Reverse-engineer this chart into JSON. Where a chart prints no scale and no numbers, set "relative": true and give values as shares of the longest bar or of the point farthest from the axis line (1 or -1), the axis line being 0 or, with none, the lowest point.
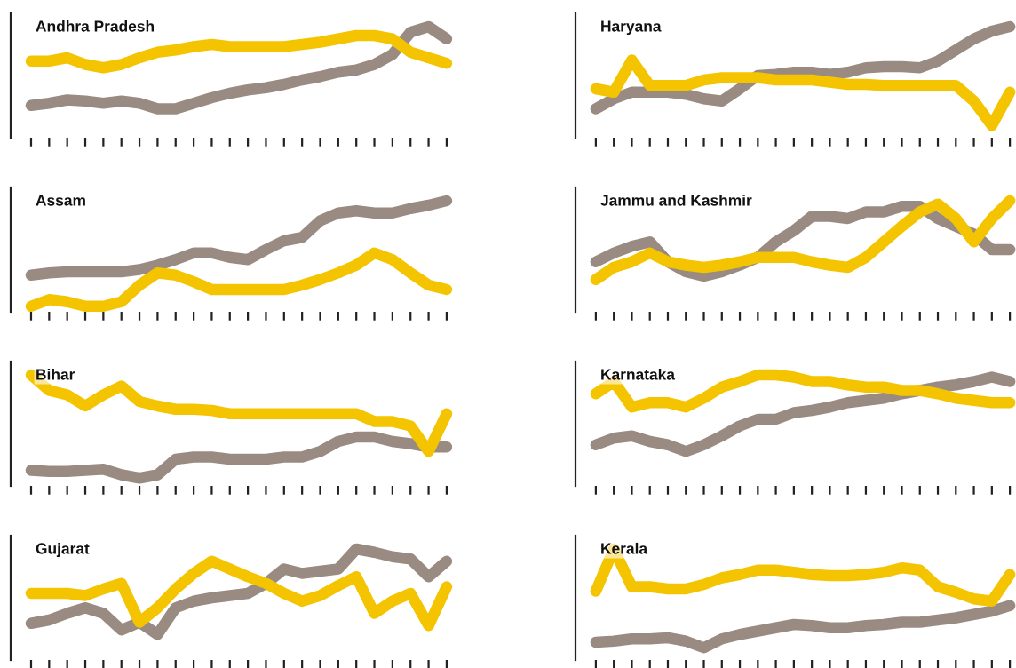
{
  "chart_data": [
    {
      "type": "line",
      "title": "Andhra Pradesh",
      "relative": true,
      "categories": [
        null,
        null,
        null,
        null,
        null,
        null,
        null,
        null,
        null,
        null,
        null,
        null,
        null,
        null,
        null,
        null,
        null,
        null,
        null,
        null,
        null,
        null,
        null,
        null
      ],
      "series": [
        {
          "color": "#9a8b82",
          "values": [
            0.29,
            0.31,
            0.34,
            0.33,
            0.31,
            0.33,
            0.31,
            0.26,
            0.26,
            0.31,
            0.36,
            0.4,
            0.43,
            0.45,
            0.48,
            0.52,
            0.55,
            0.59,
            0.61,
            0.66,
            0.75,
            0.95,
            1.0,
            0.89
          ]
        },
        {
          "color": "#f5c400",
          "values": [
            0.69,
            0.69,
            0.72,
            0.66,
            0.63,
            0.66,
            0.72,
            0.77,
            0.79,
            0.82,
            0.84,
            0.82,
            0.82,
            0.82,
            0.82,
            0.84,
            0.86,
            0.89,
            0.92,
            0.92,
            0.89,
            0.77,
            0.72,
            0.67
          ]
        }
      ]
    },
    {
      "type": "line",
      "title": "Haryana",
      "relative": true,
      "categories": [
        null,
        null,
        null,
        null,
        null,
        null,
        null,
        null,
        null,
        null,
        null,
        null,
        null,
        null,
        null,
        null,
        null,
        null,
        null,
        null,
        null,
        null,
        null,
        null
      ],
      "series": [
        {
          "color": "#9a8b82",
          "values": [
            0.26,
            0.35,
            0.41,
            0.41,
            0.41,
            0.39,
            0.35,
            0.33,
            0.44,
            0.56,
            0.57,
            0.59,
            0.59,
            0.57,
            0.59,
            0.63,
            0.64,
            0.64,
            0.63,
            0.69,
            0.79,
            0.89,
            0.96,
            1.0
          ]
        },
        {
          "color": "#f5c400",
          "values": [
            0.44,
            0.41,
            0.7,
            0.47,
            0.47,
            0.47,
            0.52,
            0.54,
            0.54,
            0.54,
            0.52,
            0.52,
            0.52,
            0.5,
            0.48,
            0.48,
            0.47,
            0.47,
            0.47,
            0.47,
            0.47,
            0.33,
            0.11,
            0.41
          ]
        }
      ]
    },
    {
      "type": "line",
      "title": "Assam",
      "relative": true,
      "categories": [
        null,
        null,
        null,
        null,
        null,
        null,
        null,
        null,
        null,
        null,
        null,
        null,
        null,
        null,
        null,
        null,
        null,
        null,
        null,
        null,
        null,
        null,
        null,
        null
      ],
      "series": [
        {
          "color": "#9a8b82",
          "values": [
            0.33,
            0.35,
            0.36,
            0.36,
            0.36,
            0.36,
            0.38,
            0.42,
            0.47,
            0.53,
            0.53,
            0.49,
            0.47,
            0.56,
            0.64,
            0.67,
            0.82,
            0.89,
            0.91,
            0.89,
            0.89,
            0.93,
            0.96,
            1.0
          ]
        },
        {
          "color": "#f5c400",
          "values": [
            0.05,
            0.11,
            0.09,
            0.05,
            0.05,
            0.09,
            0.24,
            0.35,
            0.33,
            0.27,
            0.2,
            0.2,
            0.2,
            0.2,
            0.2,
            0.24,
            0.29,
            0.35,
            0.42,
            0.53,
            0.47,
            0.35,
            0.24,
            0.2
          ]
        }
      ]
    },
    {
      "type": "line",
      "title": "Jammu and Kashmir",
      "relative": true,
      "categories": [
        null,
        null,
        null,
        null,
        null,
        null,
        null,
        null,
        null,
        null,
        null,
        null,
        null,
        null,
        null,
        null,
        null,
        null,
        null,
        null,
        null,
        null,
        null,
        null
      ],
      "series": [
        {
          "color": "#9a8b82",
          "values": [
            0.45,
            0.53,
            0.59,
            0.63,
            0.45,
            0.36,
            0.32,
            0.36,
            0.42,
            0.49,
            0.63,
            0.73,
            0.86,
            0.86,
            0.84,
            0.9,
            0.9,
            0.95,
            0.95,
            0.84,
            0.77,
            0.7,
            0.56,
            0.56
          ]
        },
        {
          "color": "#f5c400",
          "values": [
            0.29,
            0.4,
            0.45,
            0.53,
            0.45,
            0.42,
            0.4,
            0.42,
            0.45,
            0.49,
            0.49,
            0.49,
            0.45,
            0.42,
            0.4,
            0.49,
            0.63,
            0.77,
            0.9,
            0.97,
            0.84,
            0.63,
            0.84,
            1.0
          ]
        }
      ]
    },
    {
      "type": "line",
      "title": "Bihar",
      "relative": true,
      "categories": [
        null,
        null,
        null,
        null,
        null,
        null,
        null,
        null,
        null,
        null,
        null,
        null,
        null,
        null,
        null,
        null,
        null,
        null,
        null,
        null,
        null,
        null,
        null,
        null
      ],
      "series": [
        {
          "color": "#9a8b82",
          "values": [
            0.14,
            0.13,
            0.13,
            0.14,
            0.15,
            0.1,
            0.07,
            0.1,
            0.24,
            0.26,
            0.26,
            0.24,
            0.24,
            0.24,
            0.26,
            0.26,
            0.31,
            0.4,
            0.44,
            0.44,
            0.4,
            0.38,
            0.35,
            0.35
          ]
        },
        {
          "color": "#f5c400",
          "values": [
            1.0,
            0.86,
            0.82,
            0.72,
            0.82,
            0.9,
            0.76,
            0.72,
            0.69,
            0.69,
            0.68,
            0.65,
            0.65,
            0.65,
            0.65,
            0.65,
            0.65,
            0.65,
            0.65,
            0.58,
            0.58,
            0.54,
            0.31,
            0.65
          ]
        }
      ]
    },
    {
      "type": "line",
      "title": "Karnataka",
      "relative": true,
      "categories": [
        null,
        null,
        null,
        null,
        null,
        null,
        null,
        null,
        null,
        null,
        null,
        null,
        null,
        null,
        null,
        null,
        null,
        null,
        null,
        null,
        null,
        null,
        null,
        null
      ],
      "series": [
        {
          "color": "#9a8b82",
          "values": [
            0.37,
            0.43,
            0.45,
            0.4,
            0.37,
            0.31,
            0.37,
            0.45,
            0.54,
            0.6,
            0.6,
            0.66,
            0.68,
            0.71,
            0.75,
            0.77,
            0.79,
            0.83,
            0.86,
            0.89,
            0.91,
            0.94,
            0.98,
            0.94
          ]
        },
        {
          "color": "#f5c400",
          "values": [
            0.83,
            0.94,
            0.71,
            0.75,
            0.75,
            0.71,
            0.79,
            0.89,
            0.94,
            1.0,
            1.0,
            0.98,
            0.94,
            0.94,
            0.91,
            0.89,
            0.89,
            0.86,
            0.86,
            0.83,
            0.79,
            0.77,
            0.75,
            0.75
          ]
        }
      ]
    },
    {
      "type": "line",
      "title": "Gujarat",
      "relative": true,
      "categories": [
        null,
        null,
        null,
        null,
        null,
        null,
        null,
        null,
        null,
        null,
        null,
        null,
        null,
        null,
        null,
        null,
        null,
        null,
        null,
        null,
        null,
        null,
        null,
        null
      ],
      "series": [
        {
          "color": "#9a8b82",
          "values": [
            0.33,
            0.36,
            0.42,
            0.47,
            0.42,
            0.27,
            0.34,
            0.23,
            0.47,
            0.53,
            0.56,
            0.58,
            0.6,
            0.69,
            0.82,
            0.78,
            0.8,
            0.82,
            1.0,
            0.97,
            0.93,
            0.91,
            0.75,
            0.89
          ]
        },
        {
          "color": "#f5c400",
          "values": [
            0.6,
            0.6,
            0.6,
            0.58,
            0.64,
            0.69,
            0.34,
            0.47,
            0.64,
            0.78,
            0.89,
            0.82,
            0.75,
            0.69,
            0.6,
            0.53,
            0.58,
            0.67,
            0.75,
            0.42,
            0.53,
            0.6,
            0.31,
            0.66
          ]
        }
      ]
    },
    {
      "type": "line",
      "title": "Kerala",
      "relative": true,
      "categories": [
        null,
        null,
        null,
        null,
        null,
        null,
        null,
        null,
        null,
        null,
        null,
        null,
        null,
        null,
        null,
        null,
        null,
        null,
        null,
        null,
        null,
        null,
        null,
        null
      ],
      "series": [
        {
          "color": "#9a8b82",
          "values": [
            0.16,
            0.17,
            0.19,
            0.19,
            0.2,
            0.17,
            0.11,
            0.19,
            0.23,
            0.26,
            0.29,
            0.32,
            0.31,
            0.29,
            0.29,
            0.31,
            0.32,
            0.34,
            0.34,
            0.36,
            0.38,
            0.41,
            0.44,
            0.49
          ]
        },
        {
          "color": "#f5c400",
          "values": [
            0.62,
            1.0,
            0.66,
            0.66,
            0.64,
            0.64,
            0.68,
            0.74,
            0.77,
            0.81,
            0.81,
            0.79,
            0.77,
            0.76,
            0.76,
            0.77,
            0.79,
            0.83,
            0.81,
            0.66,
            0.61,
            0.55,
            0.53,
            0.77
          ]
        }
      ]
    }
  ]
}
